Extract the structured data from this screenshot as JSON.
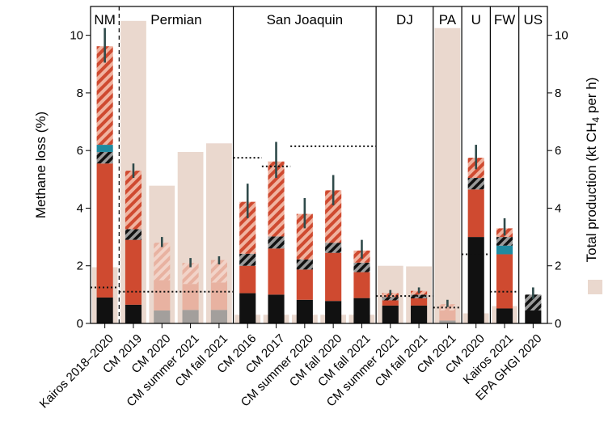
{
  "chart_data": {
    "type": "bar",
    "ylabel": "Methane loss (%)",
    "y2label_parts": [
      "Total production (kt CH",
      "4",
      " per h)"
    ],
    "ylim": [
      0,
      11
    ],
    "y2lim": [
      0,
      11
    ],
    "yticks": [
      0,
      2,
      4,
      6,
      8,
      10
    ],
    "ytick_labels": [
      "0",
      "2",
      "4",
      "6",
      "8",
      "10"
    ],
    "y2ticks": [
      0,
      2,
      4,
      6,
      8,
      10
    ],
    "y2tick_labels": [
      "0",
      "2",
      "4",
      "6",
      "8",
      "10"
    ],
    "grid": false,
    "legend": {
      "entries": [
        {
          "label": "Total production (kt CH4 per h)",
          "color": "#ead8ce"
        }
      ],
      "placement": "right-axis"
    },
    "colors": {
      "production": "#ead8ce",
      "red": "#cf4a30",
      "red_hatch_stripe": "#f0b3a0",
      "black": "#111111",
      "teal": "#1f8aa0",
      "error_bar": "#2f4a4a",
      "light_red": "#e8a693",
      "gray": "#8c8c8c"
    },
    "basins": [
      {
        "label": "NM",
        "from": 0,
        "to": 0,
        "divider_after": "dashed"
      },
      {
        "label": "Permian",
        "from": 1,
        "to": 4,
        "divider_after": "solid"
      },
      {
        "label": "San Joaquin",
        "from": 5,
        "to": 9,
        "divider_after": "solid"
      },
      {
        "label": "DJ",
        "from": 10,
        "to": 11,
        "divider_after": "solid"
      },
      {
        "label": "PA",
        "from": 12,
        "to": 12,
        "divider_after": "solid"
      },
      {
        "label": "U",
        "from": 13,
        "to": 13,
        "divider_after": "solid"
      },
      {
        "label": "FW",
        "from": 14,
        "to": 14,
        "divider_after": "solid"
      },
      {
        "label": "US",
        "from": 15,
        "to": 15,
        "divider_after": "none"
      }
    ],
    "categories": [
      "Kairos 2018–2020",
      "CM 2019",
      "CM 2020",
      "CM summer 2021",
      "CM fall 2021",
      "CM 2016",
      "CM 2017",
      "CM summer 2020",
      "CM fall 2020",
      "CM fall 2021",
      "CM summer 2021",
      "CM fall 2021",
      "CM 2021",
      "CM 2020",
      "Kairos 2021",
      "EPA GHGI 2020"
    ],
    "production": [
      1.95,
      10.5,
      4.78,
      5.95,
      6.25,
      0.3,
      0.3,
      0.3,
      0.3,
      0.3,
      2.0,
      1.98,
      10.25,
      0.35,
      0.6,
      0
    ],
    "production_note_indices": [
      5,
      6,
      7,
      8,
      9
    ],
    "bars": [
      {
        "segments": [
          {
            "kind": "black",
            "value": 0.9
          },
          {
            "kind": "red",
            "value": 4.65
          },
          {
            "kind": "blackhatch",
            "value": 0.4
          },
          {
            "kind": "teal",
            "value": 0.25
          },
          {
            "kind": "redhatch",
            "value": 3.42
          }
        ],
        "total": 9.62,
        "err": [
          9.05,
          10.25
        ]
      },
      {
        "segments": [
          {
            "kind": "black",
            "value": 0.65
          },
          {
            "kind": "red",
            "value": 2.25
          },
          {
            "kind": "blackhatch",
            "value": 0.37
          },
          {
            "kind": "redhatch",
            "value": 2.03
          }
        ],
        "total": 5.3,
        "err": [
          5.05,
          5.55
        ]
      },
      {
        "segments": [
          {
            "kind": "gray",
            "value": 0.45
          },
          {
            "kind": "lightred",
            "value": 1.05
          },
          {
            "kind": "lighthatch",
            "value": 1.3
          }
        ],
        "total": 2.8,
        "err": [
          2.65,
          3.0
        ],
        "faded": true
      },
      {
        "segments": [
          {
            "kind": "gray",
            "value": 0.47
          },
          {
            "kind": "lightred",
            "value": 0.9
          },
          {
            "kind": "lighthatch",
            "value": 0.73
          }
        ],
        "total": 2.1,
        "err": [
          1.95,
          2.27
        ],
        "faded": true
      },
      {
        "segments": [
          {
            "kind": "gray",
            "value": 0.47
          },
          {
            "kind": "lightred",
            "value": 0.95
          },
          {
            "kind": "lighthatch",
            "value": 0.78
          }
        ],
        "total": 2.2,
        "err": [
          2.05,
          2.33
        ],
        "faded": true
      },
      {
        "segments": [
          {
            "kind": "black",
            "value": 1.05
          },
          {
            "kind": "red",
            "value": 0.95
          },
          {
            "kind": "blackhatch",
            "value": 0.42
          },
          {
            "kind": "redhatch",
            "value": 1.8
          }
        ],
        "total": 4.22,
        "err": [
          3.65,
          4.85
        ]
      },
      {
        "segments": [
          {
            "kind": "black",
            "value": 1.0
          },
          {
            "kind": "red",
            "value": 1.6
          },
          {
            "kind": "blackhatch",
            "value": 0.42
          },
          {
            "kind": "redhatch",
            "value": 2.6
          }
        ],
        "total": 5.62,
        "err": [
          5.05,
          6.3
        ]
      },
      {
        "segments": [
          {
            "kind": "black",
            "value": 0.82
          },
          {
            "kind": "red",
            "value": 1.05
          },
          {
            "kind": "blackhatch",
            "value": 0.35
          },
          {
            "kind": "redhatch",
            "value": 1.58
          }
        ],
        "total": 3.8,
        "err": [
          3.3,
          4.35
        ]
      },
      {
        "segments": [
          {
            "kind": "black",
            "value": 0.78
          },
          {
            "kind": "red",
            "value": 1.67
          },
          {
            "kind": "blackhatch",
            "value": 0.35
          },
          {
            "kind": "redhatch",
            "value": 1.82
          }
        ],
        "total": 4.62,
        "err": [
          4.1,
          5.15
        ]
      },
      {
        "segments": [
          {
            "kind": "black",
            "value": 0.88
          },
          {
            "kind": "red",
            "value": 0.9
          },
          {
            "kind": "blackhatch",
            "value": 0.33
          },
          {
            "kind": "redhatch",
            "value": 0.42
          }
        ],
        "total": 2.53,
        "err": [
          2.25,
          2.9
        ]
      },
      {
        "segments": [
          {
            "kind": "black",
            "value": 0.62
          },
          {
            "kind": "red",
            "value": 0.18
          },
          {
            "kind": "blackhatch",
            "value": 0.12
          },
          {
            "kind": "redhatch",
            "value": 0.13
          }
        ],
        "total": 1.05,
        "err": [
          0.97,
          1.16
        ]
      },
      {
        "segments": [
          {
            "kind": "black",
            "value": 0.62
          },
          {
            "kind": "red",
            "value": 0.25
          },
          {
            "kind": "blackhatch",
            "value": 0.13
          },
          {
            "kind": "redhatch",
            "value": 0.13
          }
        ],
        "total": 1.13,
        "err": [
          1.05,
          1.25
        ]
      },
      {
        "segments": [
          {
            "kind": "gray",
            "value": 0.1
          },
          {
            "kind": "lightred",
            "value": 0.35
          },
          {
            "kind": "lighthatch",
            "value": 0.22
          }
        ],
        "total": 0.67,
        "err": [
          0.57,
          0.82
        ],
        "faded": true
      },
      {
        "segments": [
          {
            "kind": "black",
            "value": 3.0
          },
          {
            "kind": "red",
            "value": 1.65
          },
          {
            "kind": "blackhatch",
            "value": 0.4
          },
          {
            "kind": "redhatch",
            "value": 0.7
          }
        ],
        "total": 5.75,
        "err": [
          5.35,
          6.2
        ]
      },
      {
        "segments": [
          {
            "kind": "black",
            "value": 0.52
          },
          {
            "kind": "red",
            "value": 1.88
          },
          {
            "kind": "teal",
            "value": 0.3
          },
          {
            "kind": "blackhatch",
            "value": 0.3
          },
          {
            "kind": "redhatch",
            "value": 0.3
          }
        ],
        "total": 3.3,
        "err": [
          3.05,
          3.65
        ]
      },
      {
        "segments": [
          {
            "kind": "black",
            "value": 0.45
          },
          {
            "kind": "blackhatch",
            "value": 0.55
          }
        ],
        "total": 1.0,
        "err": [
          0.85,
          1.25
        ]
      }
    ],
    "reference_lines": [
      {
        "from": 0,
        "to": 0,
        "y": 1.25,
        "label": ""
      },
      {
        "from": 1,
        "to": 4,
        "y": 1.1,
        "label": ""
      },
      {
        "from": 5,
        "to": 5,
        "y": 5.75,
        "label": ""
      },
      {
        "from": 6,
        "to": 6,
        "y": 5.45,
        "label": ""
      },
      {
        "from": 7,
        "to": 9,
        "y": 6.15,
        "label": ""
      },
      {
        "from": 10,
        "to": 11,
        "y": 0.95,
        "label": ""
      },
      {
        "from": 12,
        "to": 12,
        "y": 0.55,
        "label": ""
      },
      {
        "from": 13,
        "to": 13,
        "y": 2.4,
        "label": ""
      },
      {
        "from": 14,
        "to": 14,
        "y": 1.1,
        "label": ""
      }
    ]
  }
}
